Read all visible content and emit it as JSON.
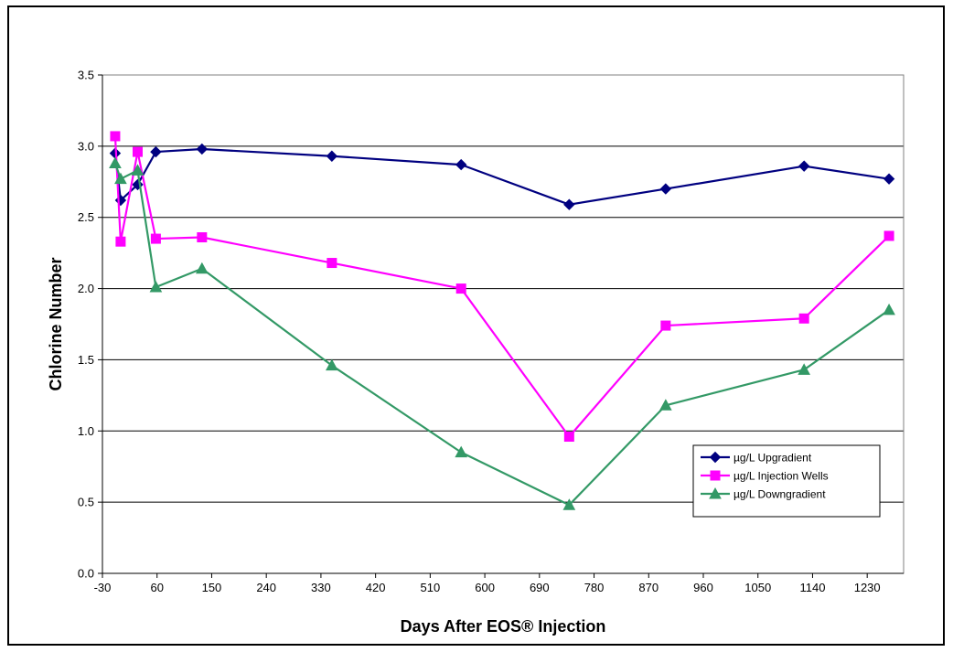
{
  "chart_data": {
    "type": "line",
    "title": "",
    "xlabel": "Days After EOS® Injection",
    "ylabel": "Chlorine Number",
    "xlim": [
      -30,
      1290
    ],
    "ylim": [
      0,
      3.5
    ],
    "x_ticks": [
      -30,
      60,
      150,
      240,
      330,
      420,
      510,
      600,
      690,
      780,
      870,
      960,
      1050,
      1140,
      1230
    ],
    "x_tick_labels": [
      "-30",
      "60",
      "150",
      "240",
      "330",
      "420",
      "510",
      "600",
      "690",
      "780",
      "870",
      "960",
      "1050",
      "1140",
      "1230"
    ],
    "y_ticks": [
      0,
      0.5,
      1.0,
      1.5,
      2.0,
      2.5,
      3.0,
      3.5
    ],
    "y_tick_labels": [
      "0.0",
      "0.5",
      "1.0",
      "1.5",
      "2.0",
      "2.5",
      "3.0",
      "3.5"
    ],
    "grid": "horizontal major gridlines",
    "legend_position": "bottom-right",
    "series": [
      {
        "name": "µg/L Upgradient",
        "color": "#000080",
        "marker": "diamond",
        "x": [
          -9,
          0,
          28,
          58,
          134,
          348,
          561,
          739,
          898,
          1126,
          1266
        ],
        "y": [
          2.95,
          2.62,
          2.73,
          2.96,
          2.98,
          2.93,
          2.87,
          2.59,
          2.7,
          2.86,
          2.77
        ]
      },
      {
        "name": "µg/L Injection Wells",
        "color": "#FF00FF",
        "marker": "square",
        "x": [
          -9,
          0,
          28,
          58,
          134,
          348,
          561,
          739,
          898,
          1126,
          1266
        ],
        "y": [
          3.07,
          2.33,
          2.96,
          2.35,
          2.36,
          2.18,
          2.0,
          0.96,
          1.74,
          1.79,
          2.37
        ]
      },
      {
        "name": "µg/L Downgradient",
        "color": "#339966",
        "marker": "triangle",
        "x": [
          -9,
          0,
          28,
          58,
          134,
          348,
          561,
          739,
          898,
          1126,
          1266
        ],
        "y": [
          2.88,
          2.77,
          2.83,
          2.01,
          2.14,
          1.46,
          0.85,
          0.48,
          1.18,
          1.43,
          1.85
        ]
      }
    ]
  }
}
